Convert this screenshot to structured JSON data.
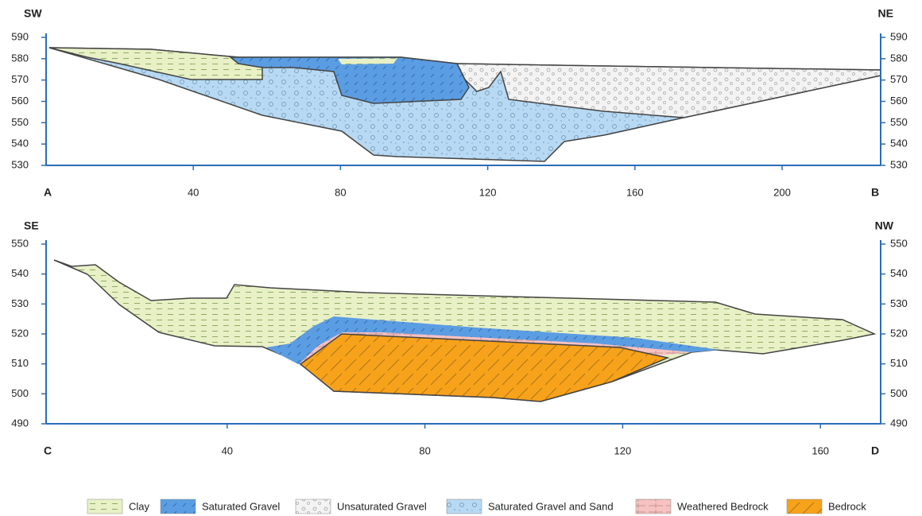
{
  "panels": [
    {
      "left_label": "SW",
      "right_label": "NE",
      "start_label": "A",
      "end_label": "B",
      "yticks": [
        590,
        580,
        570,
        560,
        550,
        540,
        530
      ],
      "xticks": [
        40,
        80,
        120,
        160,
        200
      ]
    },
    {
      "left_label": "SE",
      "right_label": "NW",
      "start_label": "C",
      "end_label": "D",
      "yticks": [
        550,
        540,
        530,
        520,
        510,
        500,
        490
      ],
      "xticks": [
        40,
        80,
        120,
        160
      ]
    }
  ],
  "legend": [
    "Clay",
    "Saturated Gravel",
    "Unsaturated Gravel",
    "Saturated Gravel and Sand",
    "Weathered Bedrock",
    "Bedrock"
  ]
}
